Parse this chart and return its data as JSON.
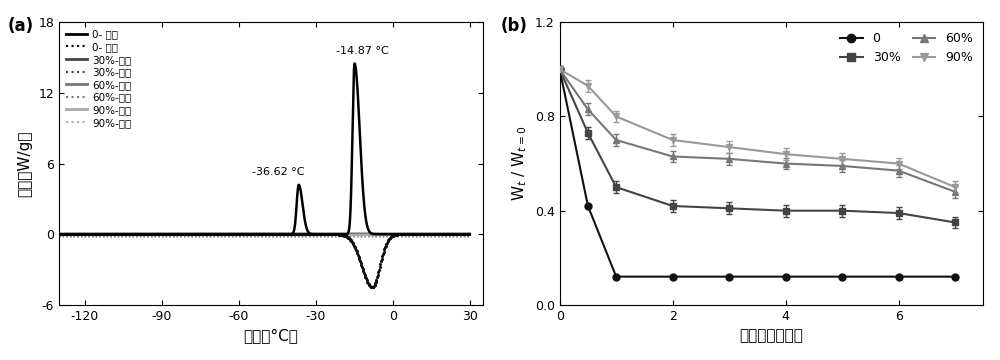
{
  "panel_a": {
    "title": "(a)",
    "xlabel": "温度（°C）",
    "ylabel": "热流（W/g）",
    "xlim": [
      -130,
      35
    ],
    "ylim": [
      -6,
      18
    ],
    "xticks": [
      -120,
      -90,
      -60,
      -30,
      0,
      30
    ],
    "yticks": [
      -6,
      0,
      6,
      12,
      18
    ],
    "annotation1": "-14.87 °C",
    "annotation2": "-36.62 °C",
    "legend_entries": [
      {
        "label": "0- 冷却",
        "color": "#000000",
        "lw": 2.0,
        "ls": "solid"
      },
      {
        "label": "0- 加热",
        "color": "#000000",
        "lw": 1.5,
        "ls": "dotted"
      },
      {
        "label": "30%-冷却",
        "color": "#444444",
        "lw": 2.0,
        "ls": "solid"
      },
      {
        "label": "30%-加热",
        "color": "#444444",
        "lw": 1.5,
        "ls": "dotted"
      },
      {
        "label": "60%-冷却",
        "color": "#777777",
        "lw": 2.0,
        "ls": "solid"
      },
      {
        "label": "60%-加热",
        "color": "#777777",
        "lw": 1.5,
        "ls": "dotted"
      },
      {
        "label": "90%-冷却",
        "color": "#aaaaaa",
        "lw": 2.0,
        "ls": "solid"
      },
      {
        "label": "90%-加热",
        "color": "#aaaaaa",
        "lw": 1.5,
        "ls": "dotted"
      }
    ]
  },
  "panel_b": {
    "title": "(b)",
    "xlabel": "储存时间（天）",
    "ylabel": "W$_t$ / W$_{t=0}$",
    "xlim": [
      0,
      7.5
    ],
    "ylim": [
      0.0,
      1.2
    ],
    "xticks": [
      0,
      2,
      4,
      6
    ],
    "yticks": [
      0.0,
      0.4,
      0.8,
      1.2
    ],
    "series": {
      "0": {
        "x": [
          0,
          0.5,
          1,
          2,
          3,
          4,
          5,
          6,
          7
        ],
        "y": [
          1.0,
          0.42,
          0.12,
          0.12,
          0.12,
          0.12,
          0.12,
          0.12,
          0.12
        ],
        "color": "#111111",
        "marker": "o",
        "label": "0"
      },
      "30%": {
        "x": [
          0,
          0.5,
          1,
          2,
          3,
          4,
          5,
          6,
          7
        ],
        "y": [
          1.0,
          0.73,
          0.5,
          0.42,
          0.41,
          0.4,
          0.4,
          0.39,
          0.35
        ],
        "color": "#444444",
        "marker": "s",
        "label": "30%"
      },
      "60%": {
        "x": [
          0,
          0.5,
          1,
          2,
          3,
          4,
          5,
          6,
          7
        ],
        "y": [
          1.0,
          0.83,
          0.7,
          0.63,
          0.62,
          0.6,
          0.59,
          0.57,
          0.48
        ],
        "color": "#777777",
        "marker": "^",
        "label": "60%"
      },
      "90%": {
        "x": [
          0,
          0.5,
          1,
          2,
          3,
          4,
          5,
          6,
          7
        ],
        "y": [
          1.0,
          0.93,
          0.8,
          0.7,
          0.67,
          0.64,
          0.62,
          0.6,
          0.5
        ],
        "color": "#999999",
        "marker": "v",
        "label": "90%"
      }
    }
  }
}
